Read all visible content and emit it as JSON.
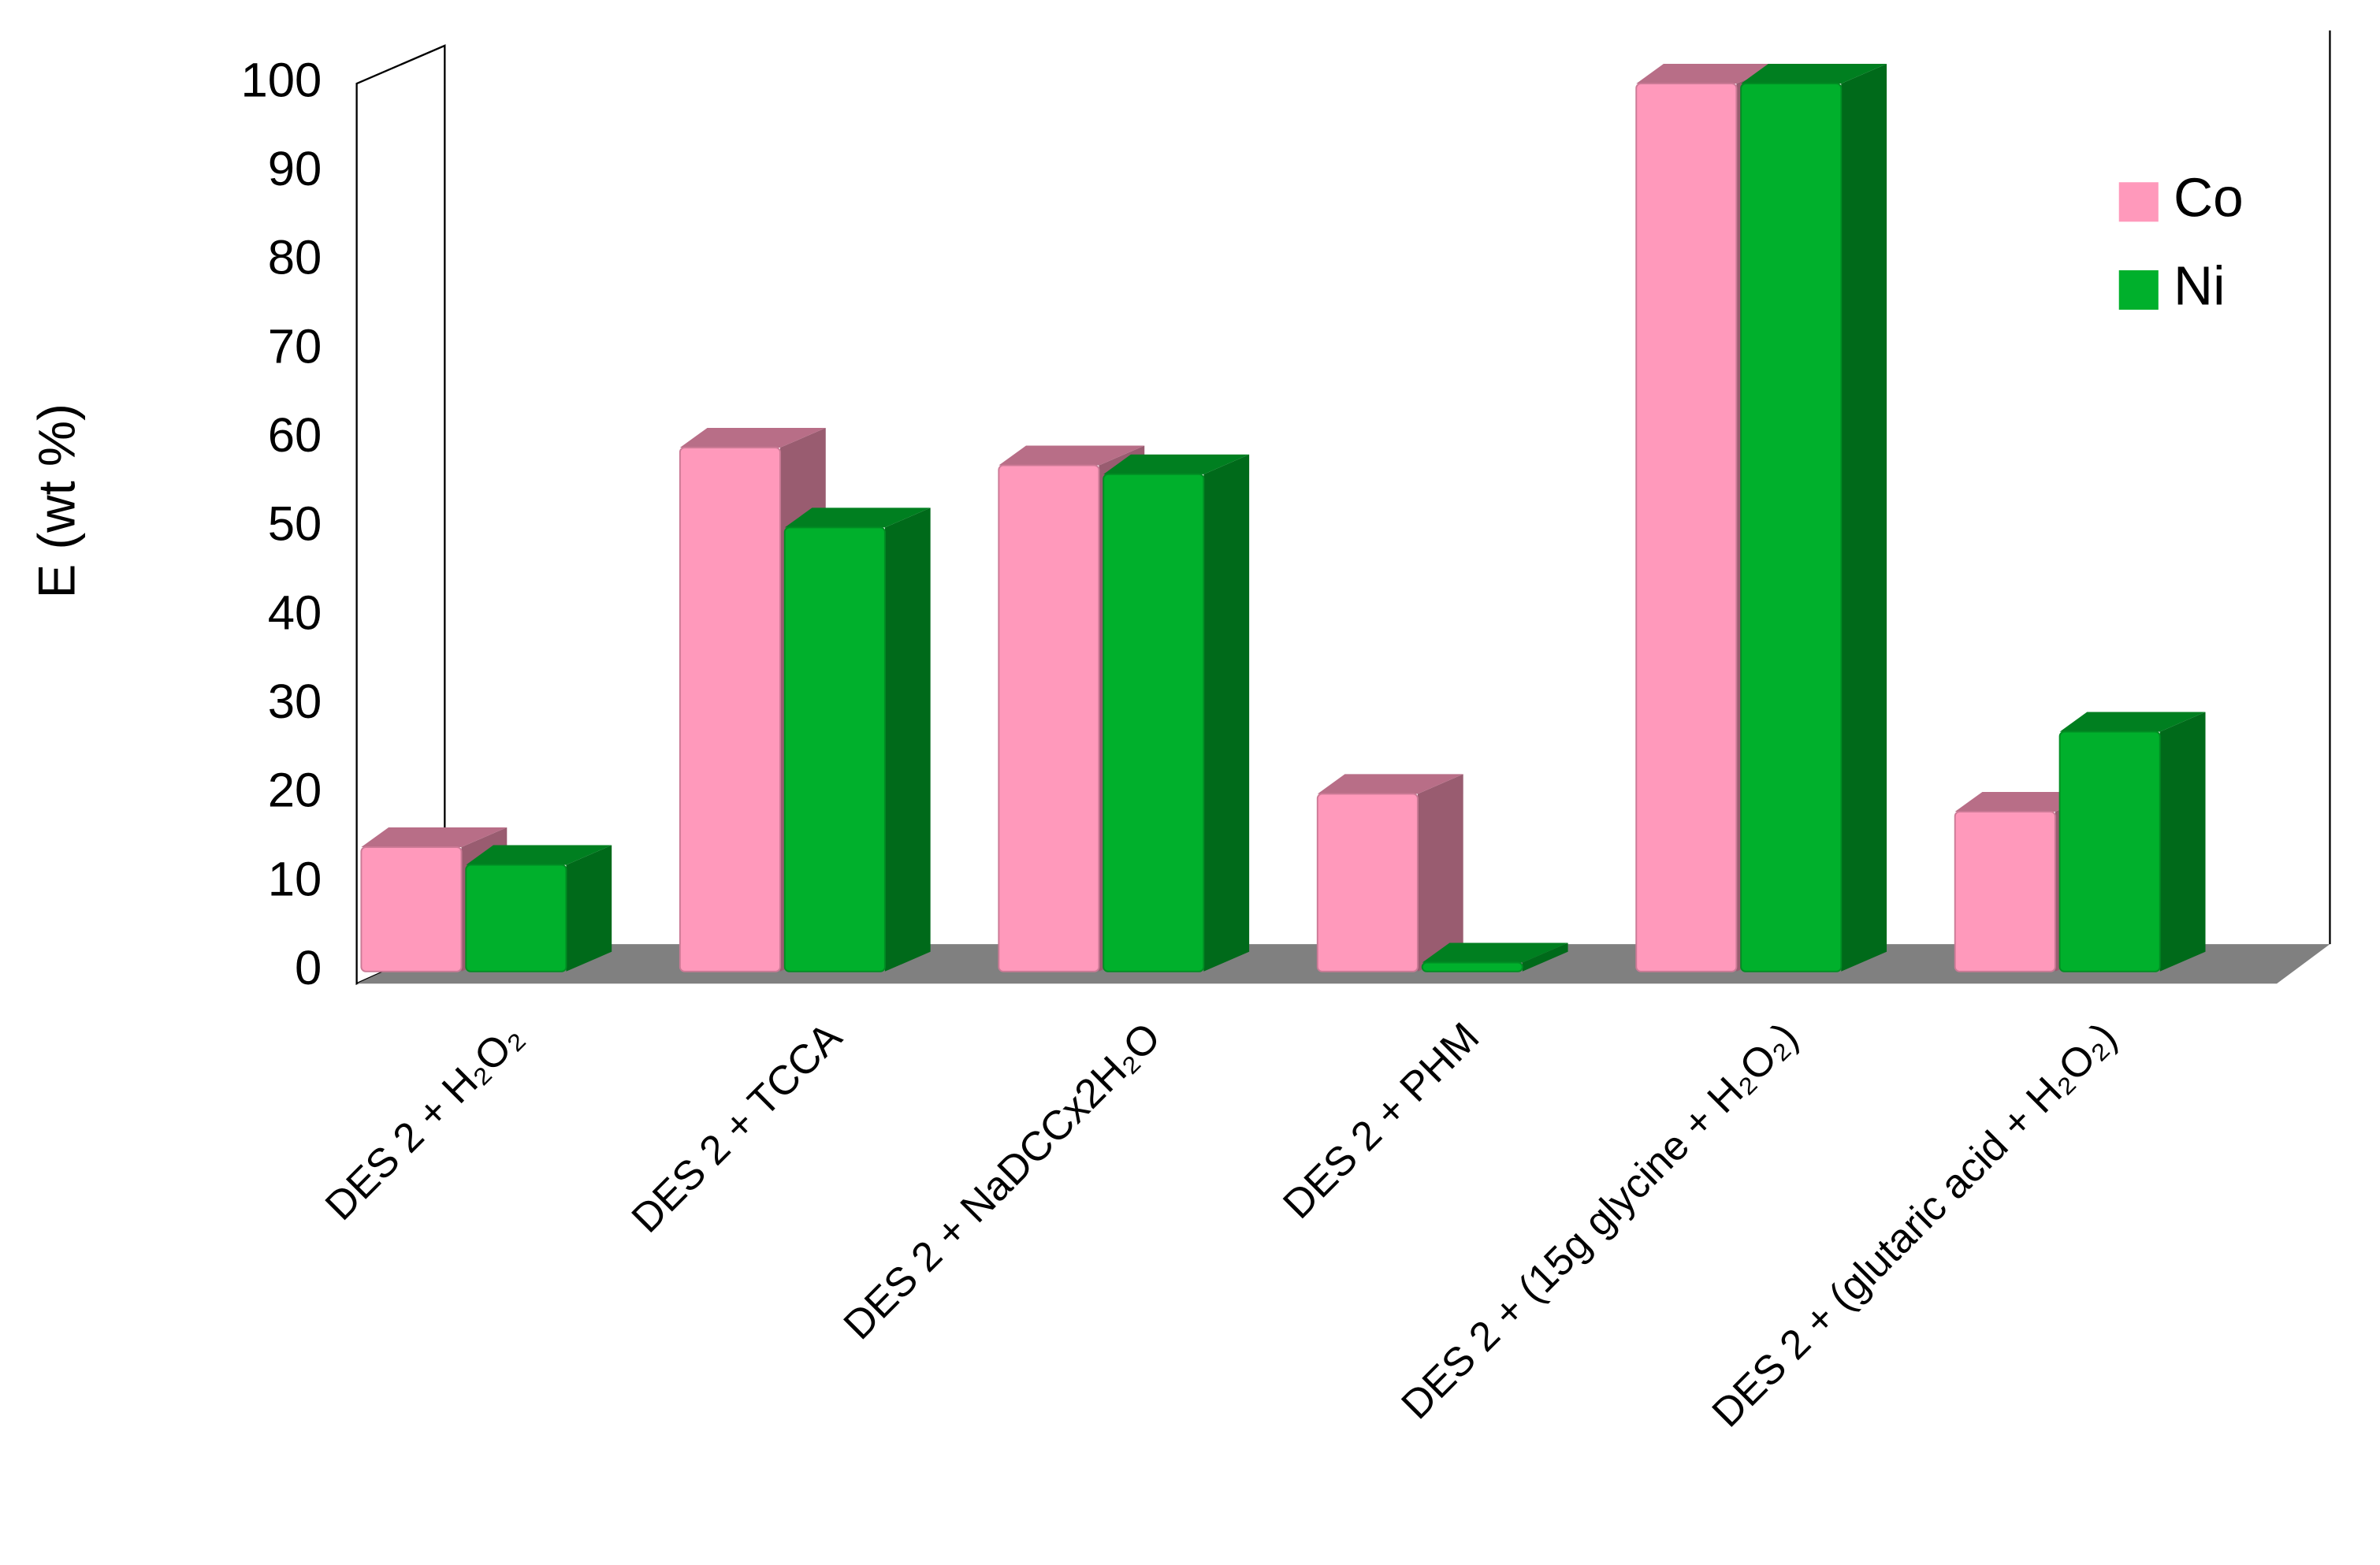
{
  "chart_data": {
    "type": "bar3d",
    "y_label": "E (wt %)",
    "categories": [
      "DES 2 + H₂O₂",
      "DES 2 + TCCA",
      "DES 2 + NaDCCx2H₂O",
      "DES 2 + PHM",
      "DES 2 + (15g glycine + H₂O₂)",
      "DES 2 + (glutaric acid + H₂O₂)"
    ],
    "series": [
      {
        "name": "Co",
        "color": "#ff99bb",
        "values": [
          14,
          59,
          57,
          20,
          100,
          18
        ]
      },
      {
        "name": "Ni",
        "color": "#00b02c",
        "values": [
          12,
          50,
          56,
          1,
          100,
          27
        ]
      }
    ],
    "ylim": [
      0,
      100
    ],
    "yticks": [
      0,
      10,
      20,
      30,
      40,
      50,
      60,
      70,
      80,
      90,
      100
    ],
    "grid": false,
    "legend": "top right"
  }
}
